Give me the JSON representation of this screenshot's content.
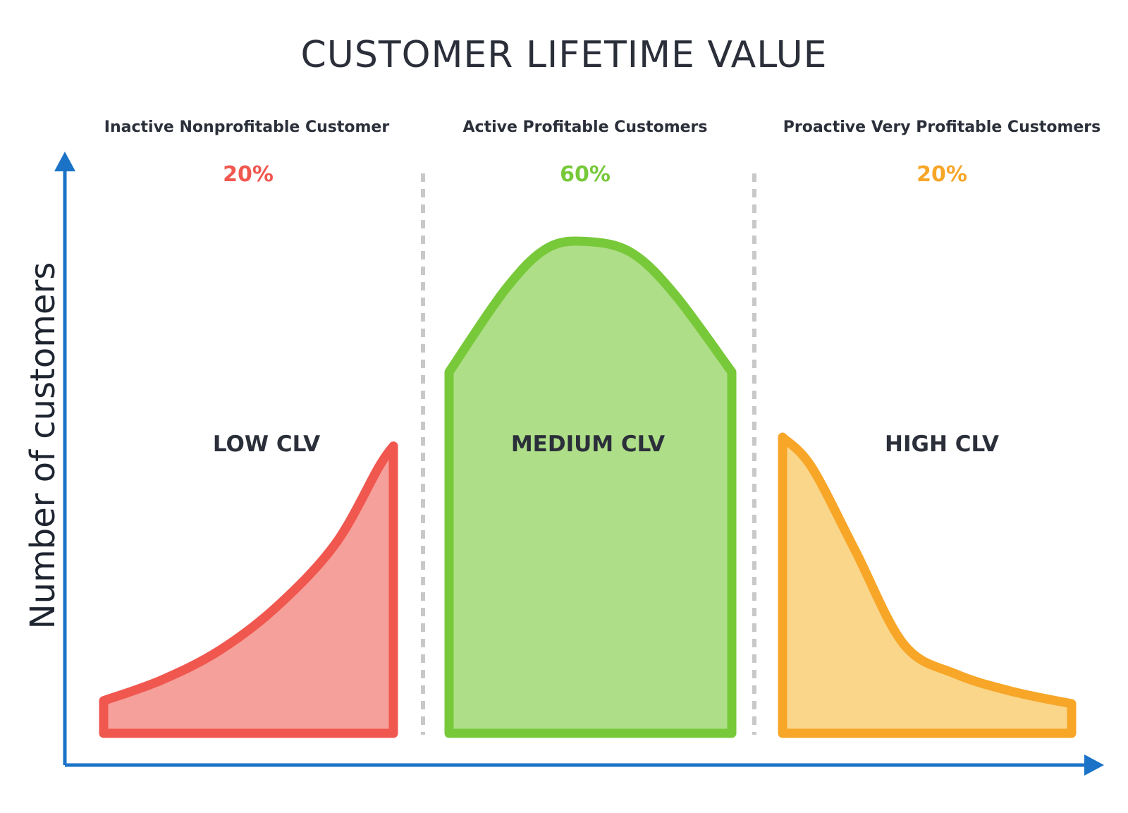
{
  "chart_data": {
    "type": "area",
    "title": "CUSTOMER LIFETIME VALUE",
    "ylabel": "Number of customers",
    "xlabel": "",
    "segments": [
      {
        "id": "low",
        "header": "Inactive Nonprofitable Customer",
        "percent": "20%",
        "label": "LOW CLV",
        "color": "#f0574f",
        "fill": "#f5a09a",
        "x": [
          0,
          0.2,
          0.4,
          0.6,
          0.8,
          0.95,
          1.0
        ],
        "y": [
          0.11,
          0.18,
          0.28,
          0.43,
          0.64,
          0.9,
          0.97
        ]
      },
      {
        "id": "medium",
        "header": "Active Profitable Customers",
        "percent": "60%",
        "label": "MEDIUM CLV",
        "color": "#78c93a",
        "fill": "#aede87",
        "x": [
          0,
          0.2,
          0.35,
          0.5,
          0.65,
          0.8,
          1.0
        ],
        "y": [
          1.22,
          1.5,
          1.64,
          1.66,
          1.62,
          1.48,
          1.22
        ]
      },
      {
        "id": "high",
        "header": "Proactive Very Profitable Customers",
        "percent": "20%",
        "label": "HIGH CLV",
        "color": "#f7a628",
        "fill": "#f9d68a",
        "x": [
          0,
          0.1,
          0.25,
          0.42,
          0.6,
          0.8,
          1.0
        ],
        "y": [
          1.0,
          0.9,
          0.62,
          0.3,
          0.2,
          0.14,
          0.1
        ]
      }
    ],
    "axis_color": "#1a73c7",
    "divider_color": "#c8c8c8"
  }
}
